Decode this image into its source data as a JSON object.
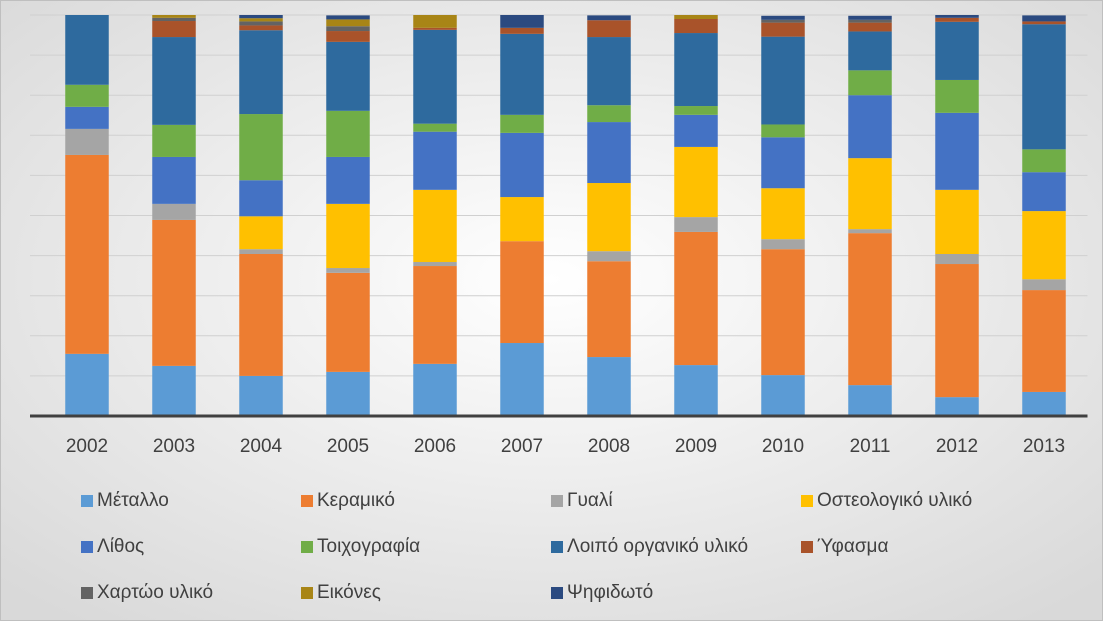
{
  "chart_data": {
    "type": "stacked_bar_100",
    "categories": [
      "2002",
      "2003",
      "2004",
      "2005",
      "2006",
      "2007",
      "2008",
      "2009",
      "2010",
      "2011",
      "2012",
      "2013"
    ],
    "ylim": [
      0,
      100
    ],
    "yticks": [
      0,
      10,
      20,
      30,
      40,
      50,
      60,
      70,
      80,
      90,
      100
    ],
    "grid": true,
    "legend": "bottom",
    "series": [
      {
        "name": "Μέταλλο",
        "color": "#5b9bd5",
        "values": [
          15.5,
          12.5,
          10,
          11,
          13,
          18.2,
          14.7,
          12.7,
          10.2,
          7.7,
          4.7,
          6
        ]
      },
      {
        "name": "Κεραμικό",
        "color": "#ed7d31",
        "values": [
          49.6,
          36.4,
          30.4,
          24.7,
          24.4,
          25.4,
          23.9,
          33.2,
          31.4,
          37.9,
          33.2,
          25.4
        ]
      },
      {
        "name": "Γυαλί",
        "color": "#a5a5a5",
        "values": [
          6.5,
          4,
          1.2,
          1.2,
          1,
          0,
          2.5,
          3.7,
          2.5,
          1,
          2.5,
          2.7
        ]
      },
      {
        "name": "Οστεολογικό υλικό",
        "color": "#ffc000",
        "values": [
          0,
          0,
          8.2,
          16,
          18,
          11,
          17,
          17.5,
          12.7,
          17.7,
          16,
          17
        ]
      },
      {
        "name": "Λίθος",
        "color": "#4472c4",
        "values": [
          5.5,
          11.7,
          9,
          11.7,
          14.5,
          16,
          15.2,
          8,
          12.7,
          15.7,
          19.2,
          9.7
        ]
      },
      {
        "name": "Τοιχογραφία",
        "color": "#70ad47",
        "values": [
          5.5,
          8,
          16.5,
          11.5,
          2,
          4.5,
          4.2,
          2.2,
          3.2,
          6.2,
          8.2,
          5.7
        ]
      },
      {
        "name": "Λοιπό οργανικό υλικό",
        "color": "#2e6a9e",
        "values": [
          17.4,
          21.9,
          20.9,
          17.2,
          23.4,
          20.2,
          17,
          18.2,
          21.9,
          9.7,
          14.5,
          31.2
        ]
      },
      {
        "name": "Ύφασμα",
        "color": "#a9532a",
        "values": [
          0,
          4,
          1.2,
          2.7,
          0.5,
          1.5,
          4.2,
          3.5,
          3.5,
          2.2,
          1,
          0.7
        ]
      },
      {
        "name": "Χαρτώο υλικό",
        "color": "#636363",
        "values": [
          0,
          0.8,
          1,
          1.2,
          0,
          0,
          0,
          0,
          0.7,
          0.7,
          0,
          0
        ]
      },
      {
        "name": "Εικόνες",
        "color": "#a88516",
        "values": [
          0,
          0.7,
          0.8,
          1.7,
          3.2,
          0,
          0,
          1,
          0,
          0,
          0,
          0
        ]
      },
      {
        "name": "Ψηφιδωτό",
        "color": "#2b4a80",
        "values": [
          0,
          0,
          0.8,
          1,
          0,
          3.2,
          1.2,
          0,
          1,
          1,
          0.7,
          1.5
        ]
      }
    ]
  }
}
